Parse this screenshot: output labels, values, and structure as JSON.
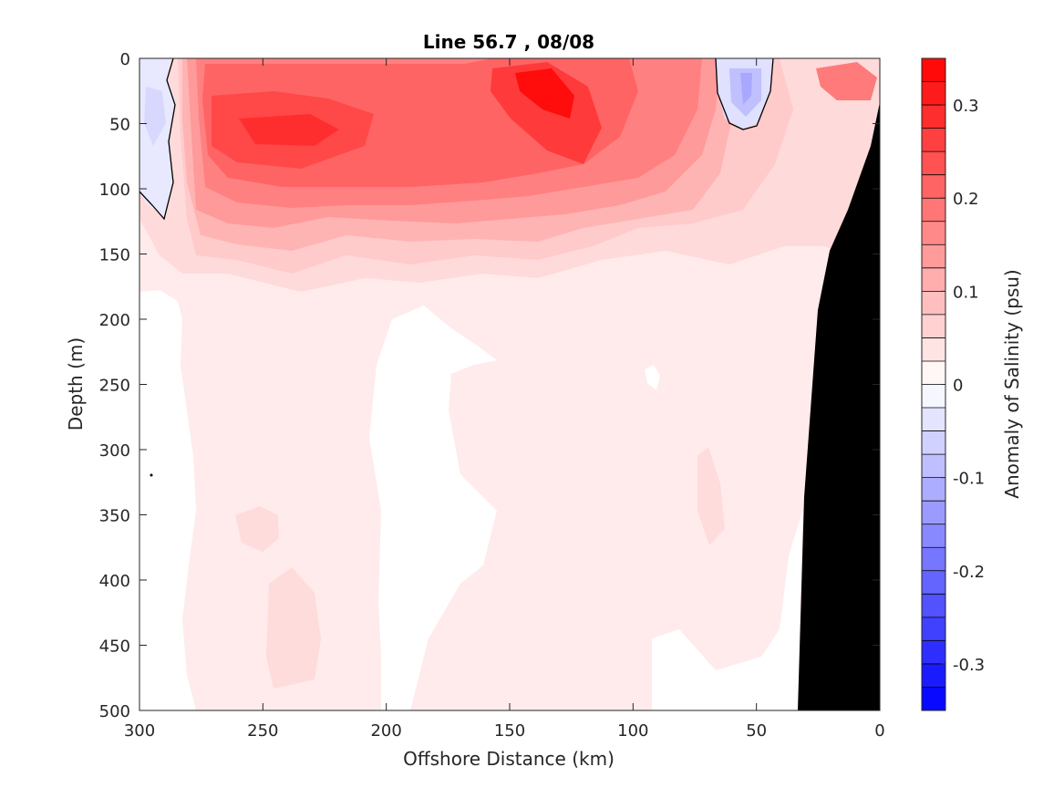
{
  "chart_data": {
    "type": "heatmap",
    "subtype": "filled-contour",
    "title": "Line 56.7 , 08/08",
    "xlabel": "Offshore Distance (km)",
    "ylabel": "Depth (m)",
    "xlim": [
      300,
      0
    ],
    "ylim": [
      500,
      0
    ],
    "x_reversed": true,
    "y_reversed": true,
    "x_ticks": [
      "300",
      "250",
      "200",
      "150",
      "100",
      "50",
      "0"
    ],
    "y_ticks": [
      "0",
      "50",
      "100",
      "150",
      "200",
      "250",
      "300",
      "350",
      "400",
      "450",
      "500"
    ],
    "colorbar": {
      "label": "Anomaly of Salinity (psu)",
      "range": [
        -0.35,
        0.35
      ],
      "levels": 28,
      "ticks": [
        "0.3",
        "0.2",
        "0.1",
        "0",
        "-0.1",
        "-0.2",
        "-0.3"
      ],
      "low_color": "#0000ff",
      "mid_color": "#ffffff",
      "high_color": "#ff0000"
    },
    "zero_contour_color": "#000000",
    "bathymetry_color": "#000000",
    "grid": false,
    "features": [
      {
        "x": 130,
        "depth": 25,
        "anomaly": 0.34
      },
      {
        "x": 230,
        "depth": 60,
        "anomaly": 0.3
      },
      {
        "x": 255,
        "depth": 20,
        "anomaly": 0.25
      },
      {
        "x": 10,
        "depth": 15,
        "anomaly": 0.22
      },
      {
        "x": 55,
        "depth": 20,
        "anomaly": -0.1
      },
      {
        "x": 295,
        "depth": 40,
        "anomaly": -0.05
      },
      {
        "x": 200,
        "depth": 350,
        "anomaly": 0.0
      },
      {
        "x": 130,
        "depth": 350,
        "anomaly": 0.0
      },
      {
        "x": 240,
        "depth": 430,
        "anomaly": 0.06
      }
    ]
  }
}
